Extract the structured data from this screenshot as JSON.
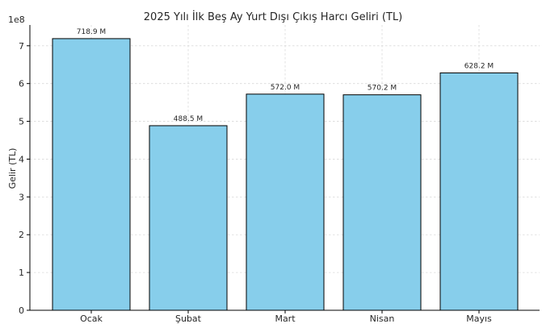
{
  "chart_data": {
    "type": "bar",
    "title": "2025 Yılı İlk Beş Ay Yurt Dışı Çıkış Harcı Geliri (TL)",
    "xlabel": "",
    "ylabel": "Gelir (TL)",
    "scale_label": "1e8",
    "categories": [
      "Ocak",
      "Şubat",
      "Mart",
      "Nisan",
      "Mayıs"
    ],
    "values": [
      718900000,
      488500000,
      572000000,
      570200000,
      628200000
    ],
    "data_labels": [
      "718.9 M",
      "488.5 M",
      "572.0 M",
      "570.2 M",
      "628.2 M"
    ],
    "ylim": [
      0,
      755000000
    ],
    "ytick_values": [
      0,
      100000000,
      200000000,
      300000000,
      400000000,
      500000000,
      600000000,
      700000000
    ],
    "ytick_labels": [
      "0",
      "1",
      "2",
      "3",
      "4",
      "5",
      "6",
      "7"
    ],
    "bar_color": "#87ceeb",
    "grid": true
  }
}
